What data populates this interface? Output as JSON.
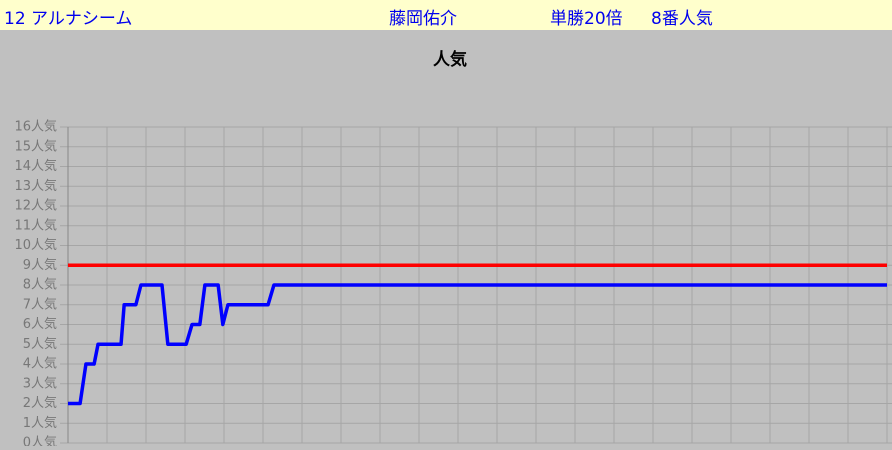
{
  "header": {
    "horse": "12 アルナシーム",
    "jockey": "藤岡佑介",
    "odds": "単勝20倍",
    "popularity": "8番人気"
  },
  "chart_data": {
    "type": "line",
    "title": "人気",
    "xlim": [
      0,
      21
    ],
    "xticks": [
      0,
      1,
      2,
      3,
      4,
      5,
      6,
      7,
      8,
      9,
      10,
      11,
      12,
      13,
      14,
      15,
      16,
      17,
      18,
      19,
      20,
      21
    ],
    "ylim": [
      0,
      16
    ],
    "yticks": [
      {
        "value": 0,
        "label": "0人気"
      },
      {
        "value": 1,
        "label": "1人気"
      },
      {
        "value": 2,
        "label": "2人気"
      },
      {
        "value": 3,
        "label": "3人気"
      },
      {
        "value": 4,
        "label": "4人気"
      },
      {
        "value": 5,
        "label": "5人気"
      },
      {
        "value": 6,
        "label": "6人気"
      },
      {
        "value": 7,
        "label": "7人気"
      },
      {
        "value": 8,
        "label": "8人気"
      },
      {
        "value": 9,
        "label": "9人気"
      },
      {
        "value": 10,
        "label": "10人気"
      },
      {
        "value": 11,
        "label": "11人気"
      },
      {
        "value": 12,
        "label": "12人気"
      },
      {
        "value": 13,
        "label": "13人気"
      },
      {
        "value": 14,
        "label": "14人気"
      },
      {
        "value": 15,
        "label": "15人気"
      },
      {
        "value": 16,
        "label": "16人気"
      }
    ],
    "grid": true,
    "series": [
      {
        "color": "#0000ff",
        "x": [
          0,
          0.31,
          0.46,
          0.67,
          0.77,
          1.36,
          1.44,
          1.74,
          1.87,
          2.41,
          2.56,
          3.03,
          3.18,
          3.38,
          3.51,
          3.85,
          3.97,
          4.1,
          5.13,
          5.28,
          21
        ],
        "values": [
          2,
          2,
          4,
          4,
          5,
          5,
          7,
          7,
          8,
          8,
          5,
          5,
          6,
          6,
          8,
          8,
          6,
          7,
          7,
          8,
          8
        ]
      },
      {
        "color": "#ff0000",
        "x": [
          0,
          21
        ],
        "values": [
          9,
          9
        ]
      }
    ]
  }
}
